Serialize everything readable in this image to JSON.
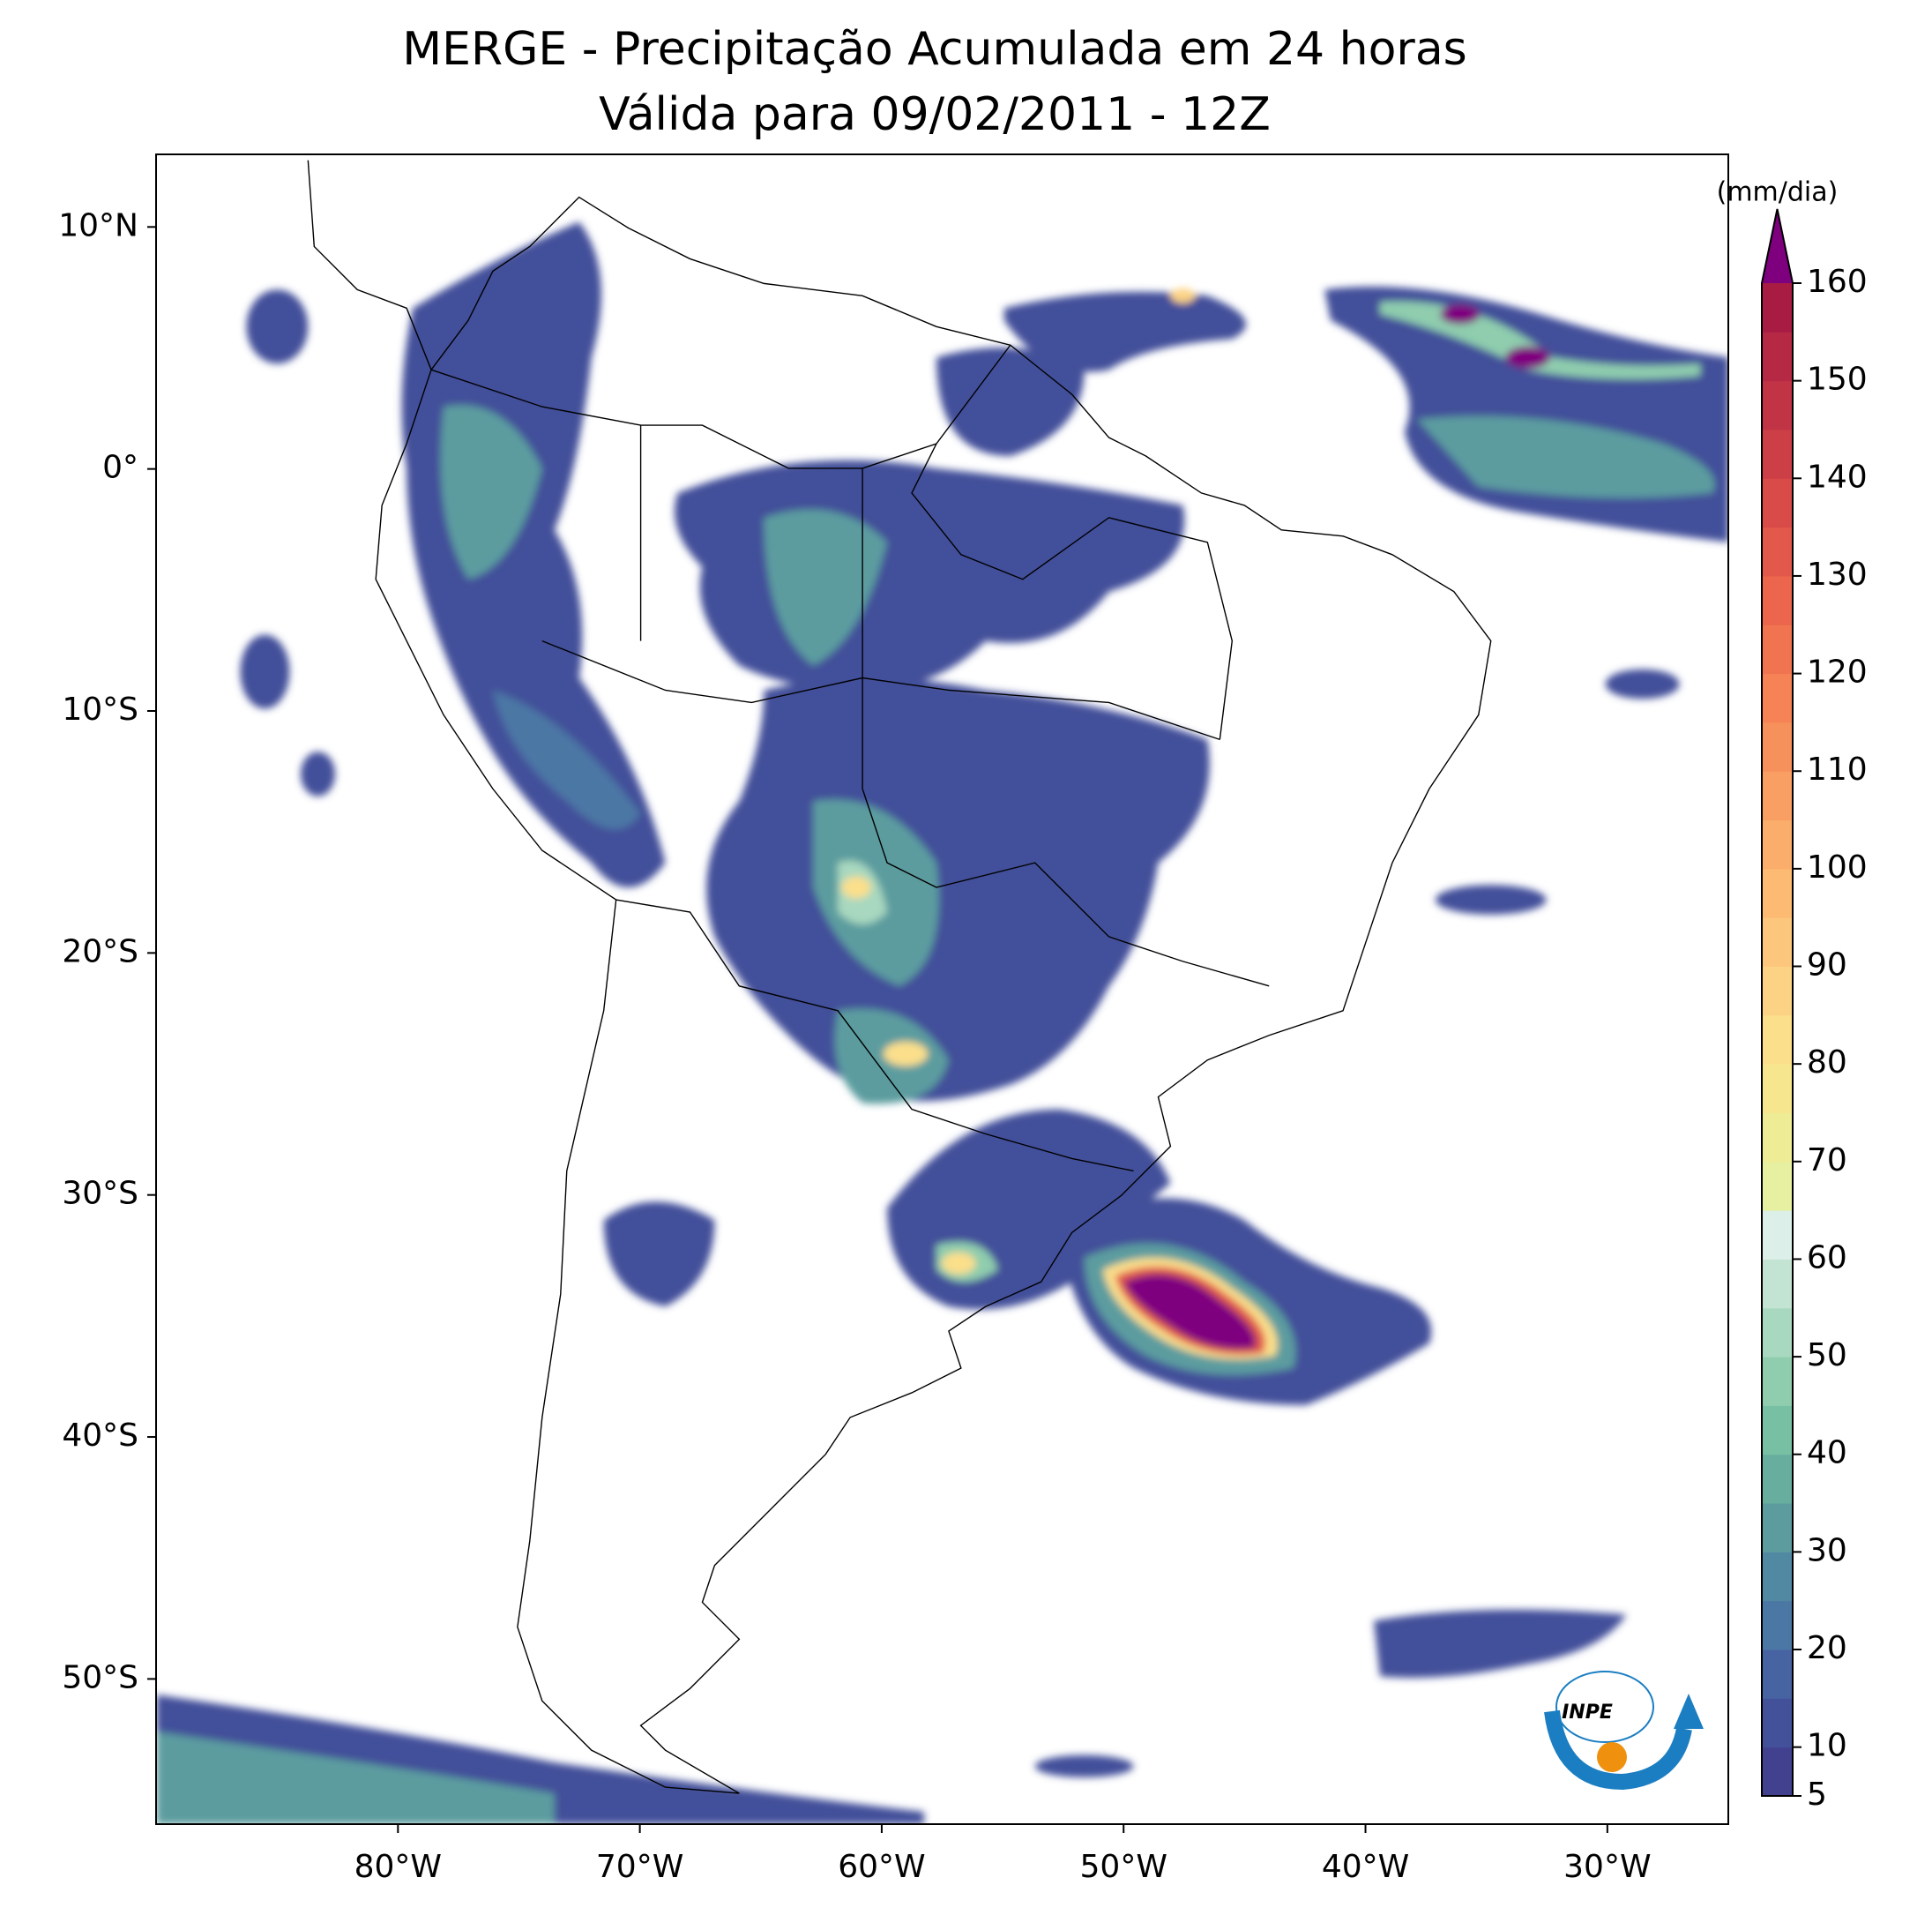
{
  "chart_data": {
    "type": "map",
    "title": "MERGE - Precipitação Acumulada em 24 horas",
    "subtitle": "Válida para 09/02/2011 - 12Z",
    "xlim": [
      -90,
      -25
    ],
    "ylim": [
      -56,
      13
    ],
    "xticks": [
      {
        "value": -80,
        "label": "80°W"
      },
      {
        "value": -70,
        "label": "70°W"
      },
      {
        "value": -60,
        "label": "60°W"
      },
      {
        "value": -50,
        "label": "50°W"
      },
      {
        "value": -40,
        "label": "40°W"
      },
      {
        "value": -30,
        "label": "30°W"
      }
    ],
    "yticks": [
      {
        "value": 10,
        "label": "10°N"
      },
      {
        "value": 0,
        "label": "0°"
      },
      {
        "value": -10,
        "label": "10°S"
      },
      {
        "value": -20,
        "label": "20°S"
      },
      {
        "value": -30,
        "label": "30°S"
      },
      {
        "value": -40,
        "label": "40°S"
      },
      {
        "value": -50,
        "label": "50°S"
      }
    ],
    "colorbar": {
      "label": "(mm/dia)",
      "levels": [
        5,
        10,
        15,
        20,
        25,
        30,
        35,
        40,
        45,
        50,
        55,
        60,
        65,
        70,
        75,
        80,
        85,
        90,
        95,
        100,
        105,
        110,
        115,
        120,
        125,
        130,
        135,
        140,
        145,
        150,
        155,
        160
      ],
      "ticks": [
        5,
        10,
        20,
        30,
        40,
        50,
        60,
        70,
        80,
        90,
        100,
        110,
        120,
        130,
        140,
        150,
        160
      ],
      "colors": [
        "#41418f",
        "#43509a",
        "#4763a2",
        "#4b77a5",
        "#5189a3",
        "#5c9c9f",
        "#67ae9e",
        "#78c0a3",
        "#8fcdae",
        "#a8d8bf",
        "#c3e4d3",
        "#dcefe8",
        "#e6f0a0",
        "#eeec94",
        "#f6e78f",
        "#fbdf8b",
        "#fcd384",
        "#fcc77c",
        "#fcba73",
        "#fbad6b",
        "#f99f63",
        "#f7915c",
        "#f58356",
        "#f17450",
        "#eb664c",
        "#e2584a",
        "#d84b48",
        "#cd3f47",
        "#c13446",
        "#b52945",
        "#a81c44"
      ],
      "extend_color": "#7f007f"
    },
    "logo": "INPE"
  }
}
